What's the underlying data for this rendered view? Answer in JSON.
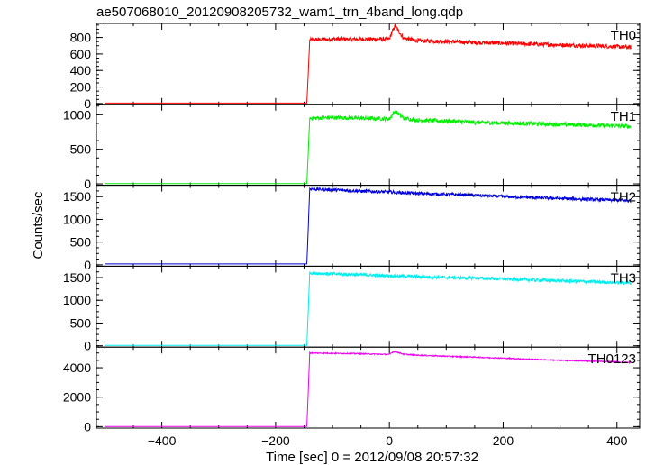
{
  "chart_data": {
    "type": "line",
    "title": "ae507068010_20120908205732_wam1_trn_4band_long.qdp",
    "xlabel": "Time [sec] 0 = 2012/09/08 20:57:32",
    "ylabel": "Counts/sec",
    "xlim": [
      -515,
      440
    ],
    "xticks": [
      -400,
      -200,
      0,
      200,
      400
    ],
    "xtick_labels": [
      "−400",
      "−200",
      "0",
      "200",
      "400"
    ],
    "onset_time": -140,
    "flare_time": 5,
    "panels": [
      {
        "name": "TH0",
        "color": "#ff0000",
        "ylim": [
          -10,
          970
        ],
        "yticks": [
          0,
          200,
          400,
          600,
          800
        ],
        "ytick_labels": [
          "0",
          "200",
          "400",
          "600",
          "800"
        ],
        "x": [
          -500,
          -145,
          -140,
          -100,
          -50,
          0,
          5,
          10,
          25,
          50,
          100,
          150,
          200,
          250,
          300,
          350,
          400,
          425
        ],
        "values": [
          5,
          5,
          770,
          780,
          780,
          780,
          870,
          940,
          790,
          760,
          750,
          740,
          730,
          720,
          710,
          700,
          690,
          680
        ]
      },
      {
        "name": "TH1",
        "color": "#00ee00",
        "ylim": [
          -20,
          1150
        ],
        "yticks": [
          0,
          500,
          1000
        ],
        "ytick_labels": [
          "0",
          "500",
          "1000"
        ],
        "x": [
          -500,
          -145,
          -140,
          -100,
          -50,
          0,
          5,
          10,
          25,
          50,
          100,
          150,
          200,
          250,
          300,
          350,
          400,
          425
        ],
        "values": [
          5,
          5,
          950,
          960,
          950,
          940,
          1000,
          1050,
          950,
          920,
          910,
          890,
          880,
          870,
          860,
          850,
          840,
          830
        ]
      },
      {
        "name": "TH2",
        "color": "#0000dd",
        "ylim": [
          -30,
          1750
        ],
        "yticks": [
          0,
          500,
          1000,
          1500
        ],
        "ytick_labels": [
          "0",
          "500",
          "1000",
          "1500"
        ],
        "x": [
          -500,
          -145,
          -140,
          -100,
          -50,
          0,
          50,
          100,
          150,
          200,
          250,
          300,
          350,
          400,
          425
        ],
        "values": [
          20,
          20,
          1670,
          1650,
          1620,
          1600,
          1570,
          1550,
          1530,
          1500,
          1480,
          1460,
          1440,
          1420,
          1410
        ]
      },
      {
        "name": "TH3",
        "color": "#00eeee",
        "ylim": [
          -30,
          1750
        ],
        "yticks": [
          0,
          500,
          1000,
          1500
        ],
        "ytick_labels": [
          "0",
          "500",
          "1000",
          "1500"
        ],
        "x": [
          -500,
          -145,
          -140,
          -100,
          -50,
          0,
          50,
          100,
          150,
          200,
          250,
          300,
          350,
          400,
          425
        ],
        "values": [
          10,
          10,
          1600,
          1580,
          1560,
          1540,
          1520,
          1500,
          1490,
          1470,
          1450,
          1430,
          1410,
          1390,
          1380
        ]
      },
      {
        "name": "TH0123",
        "color": "#ee00ee",
        "ylim": [
          -100,
          5400
        ],
        "yticks": [
          0,
          2000,
          4000
        ],
        "ytick_labels": [
          "0",
          "2000",
          "4000"
        ],
        "x": [
          -500,
          -145,
          -140,
          -100,
          -50,
          0,
          5,
          10,
          25,
          50,
          100,
          150,
          200,
          250,
          300,
          350,
          400,
          425
        ],
        "values": [
          10,
          10,
          5000,
          4980,
          4950,
          4900,
          5050,
          5100,
          4920,
          4850,
          4780,
          4720,
          4650,
          4580,
          4500,
          4450,
          4400,
          4350
        ]
      }
    ],
    "noise_fraction": [
      0.045,
      0.045,
      0.035,
      0.035,
      0.012
    ]
  }
}
